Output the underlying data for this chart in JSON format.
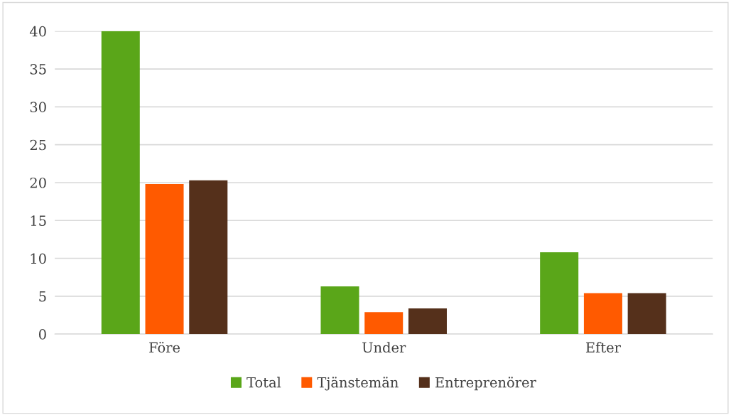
{
  "chart_data": {
    "type": "bar",
    "categories": [
      "Före",
      "Under",
      "Efter"
    ],
    "series": [
      {
        "name": "Total",
        "color": "#5aa619",
        "values": [
          40,
          6.3,
          10.8
        ]
      },
      {
        "name": "Tjänstemän",
        "color": "#ff5a00",
        "values": [
          19.8,
          2.9,
          5.4
        ]
      },
      {
        "name": "Entreprenörer",
        "color": "#55301b",
        "values": [
          20.3,
          3.4,
          5.4
        ]
      }
    ],
    "ylim": [
      0,
      40
    ],
    "yticks": [
      0,
      5,
      10,
      15,
      20,
      25,
      30,
      35,
      40
    ],
    "grid": "y",
    "legend": "bottom"
  }
}
